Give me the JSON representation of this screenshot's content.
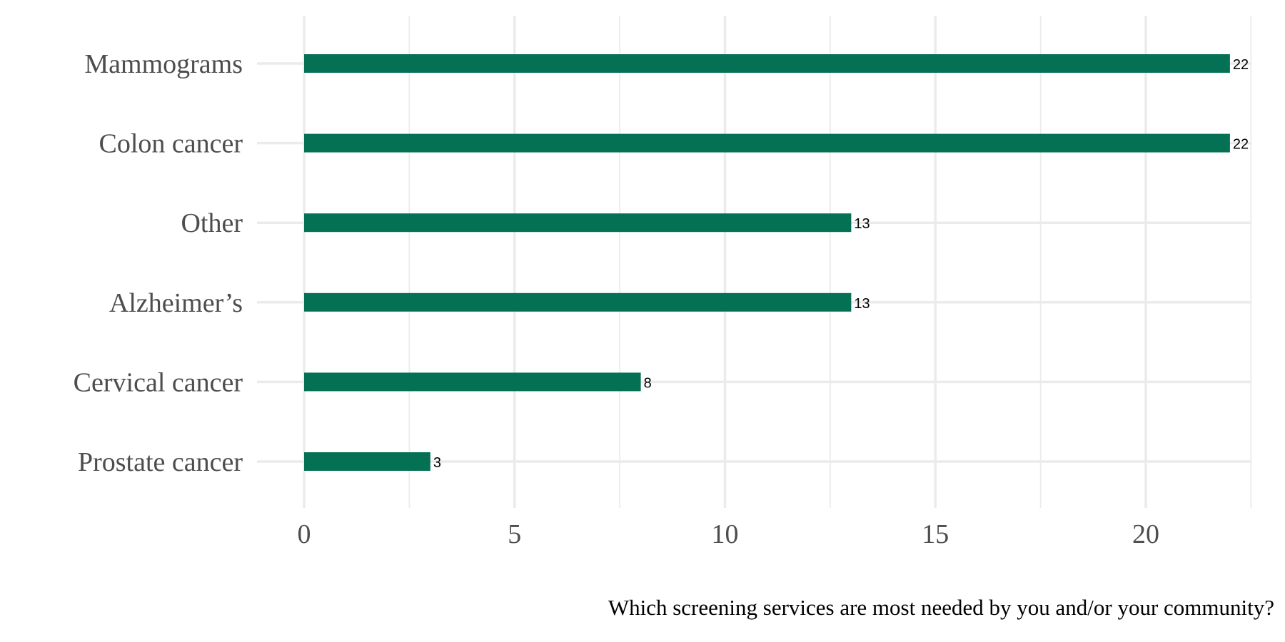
{
  "chart_data": {
    "type": "bar",
    "orientation": "horizontal",
    "categories": [
      "Mammograms",
      "Colon cancer",
      "Other",
      "Alzheimer’s",
      "Cervical cancer",
      "Prostate cancer"
    ],
    "values": [
      22,
      22,
      13,
      13,
      8,
      3
    ],
    "value_labels": [
      "22",
      "22",
      "13",
      "13",
      "8",
      "3"
    ],
    "x_ticks": [
      0,
      5,
      10,
      15,
      20
    ],
    "x_tick_labels": [
      "0",
      "5",
      "10",
      "15",
      "20"
    ],
    "xlim": [
      0,
      22.5
    ],
    "grid": true,
    "bar_color": "#047054",
    "caption": "Which screening services are most needed by you and/or your community?"
  }
}
